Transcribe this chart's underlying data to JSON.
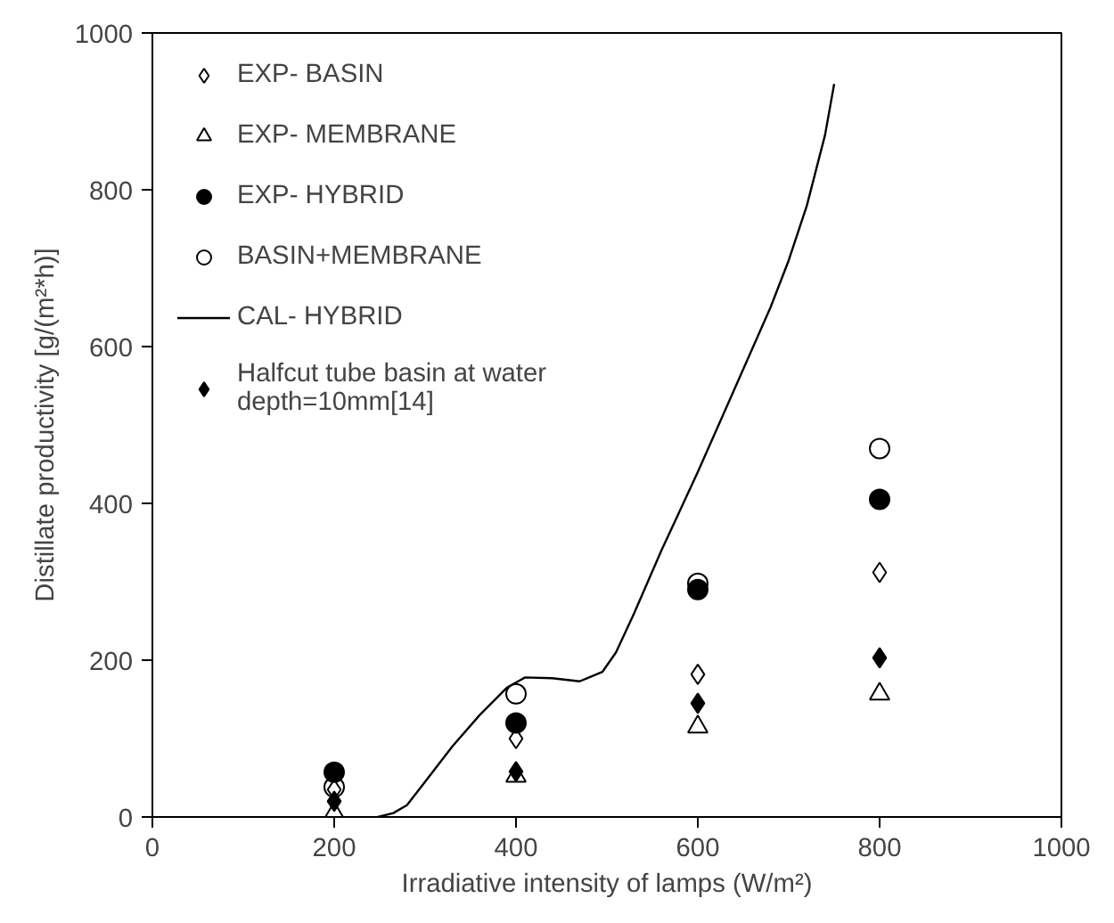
{
  "chart_data": {
    "type": "scatter",
    "xlabel": "Irradiative intensity of lamps (W/m²)",
    "ylabel": "Distillate productivity [g/(m²*h)]",
    "xlim": [
      0,
      1000
    ],
    "ylim": [
      0,
      1000
    ],
    "xticks": [
      0,
      200,
      400,
      600,
      800,
      1000
    ],
    "yticks": [
      0,
      200,
      400,
      600,
      800,
      1000
    ],
    "grid": false,
    "legend": "top left",
    "x": [
      200,
      400,
      600,
      800
    ],
    "series": [
      {
        "name": "EXP- BASIN",
        "color": "#000000",
        "marker": "diamond_open",
        "values": [
          35,
          100,
          182,
          312
        ]
      },
      {
        "name": "EXP- MEMBRANE",
        "color": "#000000",
        "marker": "triangle_open",
        "values": [
          5,
          52,
          115,
          157
        ]
      },
      {
        "name": "EXP- HYBRID",
        "color": "#000000",
        "marker": "circle",
        "values": [
          57,
          120,
          290,
          405
        ]
      },
      {
        "name": "BASIN+MEMBRANE",
        "color": "#000000",
        "marker": "circle_open",
        "values": [
          38,
          157,
          298,
          470
        ]
      },
      {
        "name": "CAL- HYBRID",
        "color": "#000000",
        "type": "line",
        "line_style": "solid",
        "x": [
          248,
          265,
          280,
          300,
          330,
          360,
          390,
          410,
          440,
          470,
          495,
          510,
          530,
          560,
          600,
          640,
          680,
          700,
          720,
          740,
          750
        ],
        "values": [
          0,
          5,
          15,
          45,
          90,
          130,
          165,
          178,
          177,
          173,
          185,
          210,
          260,
          340,
          440,
          545,
          650,
          710,
          780,
          870,
          935
        ]
      },
      {
        "name": "Halfcut tube basin at water\ndepth=10mm[14]",
        "color": "#000000",
        "marker": "diamond",
        "values": [
          20,
          58,
          145,
          203
        ]
      }
    ]
  }
}
